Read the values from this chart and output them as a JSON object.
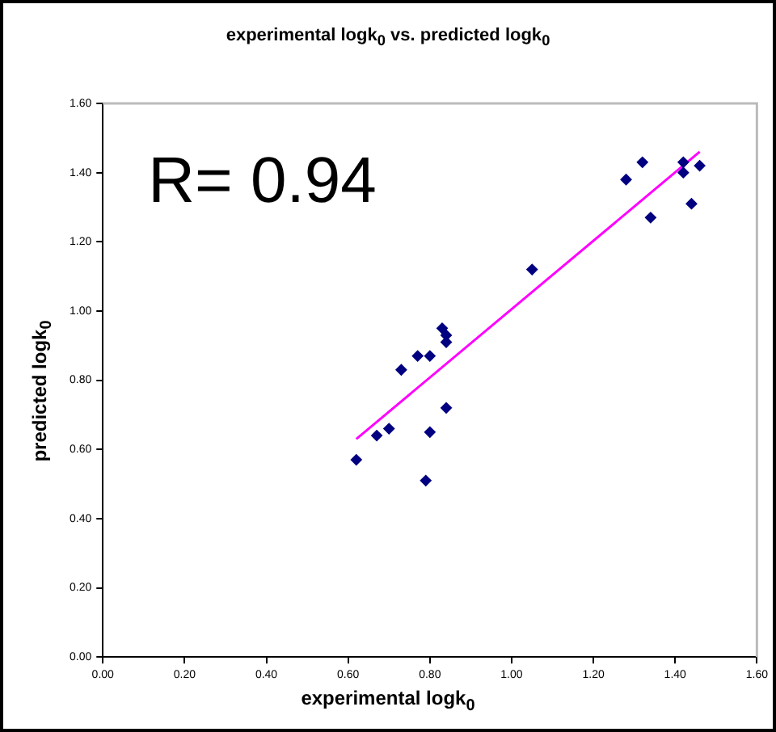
{
  "chart_data": {
    "type": "scatter",
    "title": "experimental logk$_{0}$ vs. predicted logk$_{0}$",
    "xlabel": "experimental logk$_{0}$",
    "ylabel": "predicted logk$_{0}$",
    "annotations": [
      "R= 0.94"
    ],
    "marker": "diamond",
    "grid": false,
    "legend": false,
    "xlim": [
      0,
      1.6
    ],
    "ylim": [
      0,
      1.6
    ],
    "xticks": [
      {
        "value": 0,
        "label": "0.00"
      },
      {
        "value": 0.2,
        "label": "0.20"
      },
      {
        "value": 0.4,
        "label": "0.40"
      },
      {
        "value": 0.6,
        "label": "0.60"
      },
      {
        "value": 0.8,
        "label": "0.80"
      },
      {
        "value": 1,
        "label": "1.00"
      },
      {
        "value": 1.2,
        "label": "1.20"
      },
      {
        "value": 1.4,
        "label": "1.40"
      },
      {
        "value": 1.6,
        "label": "1.60"
      }
    ],
    "yticks": [
      {
        "value": 0,
        "label": "0.00"
      },
      {
        "value": 0.2,
        "label": "0.20"
      },
      {
        "value": 0.4,
        "label": "0.40"
      },
      {
        "value": 0.6,
        "label": "0.60"
      },
      {
        "value": 0.8,
        "label": "0.80"
      },
      {
        "value": 1,
        "label": "1.00"
      },
      {
        "value": 1.2,
        "label": "1.20"
      },
      {
        "value": 1.4,
        "label": "1.40"
      },
      {
        "value": 1.6,
        "label": "1.60"
      }
    ],
    "series": [
      {
        "type": "scatter",
        "color": "#000080",
        "x": [
          0.62,
          0.67,
          0.7,
          0.73,
          0.77,
          0.8,
          0.79,
          0.8,
          0.83,
          0.84,
          0.84,
          0.84,
          1.05,
          1.28,
          1.32,
          1.34,
          1.42,
          1.42,
          1.44,
          1.46
        ],
        "values": [
          0.57,
          0.64,
          0.66,
          0.83,
          0.87,
          0.87,
          0.51,
          0.65,
          0.95,
          0.93,
          0.91,
          0.72,
          1.12,
          1.38,
          1.43,
          1.27,
          1.4,
          1.43,
          1.31,
          1.42
        ]
      },
      {
        "type": "line",
        "color": "#ff00ff",
        "marker": "none",
        "x": [
          0.62,
          1.46
        ],
        "values": [
          0.63,
          1.46
        ]
      }
    ]
  }
}
